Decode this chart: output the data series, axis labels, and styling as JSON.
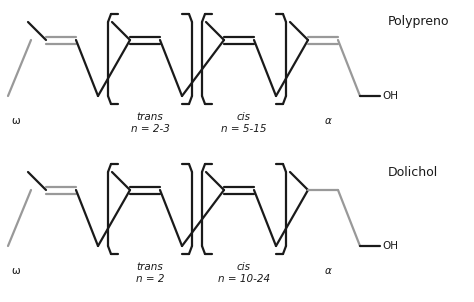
{
  "bg_color": "#ffffff",
  "line_color": "#1a1a1a",
  "gray_color": "#999999",
  "title1": "Polypreno",
  "title2": "Dolichol",
  "label_omega": "ω",
  "label_trans": "trans",
  "label_cis": "cis",
  "label_alpha": "α",
  "label_n1_trans": "n = 2-3",
  "label_n1_cis": "n = 5-15",
  "label_n2_trans": "n = 2",
  "label_n2_cis": "n = 10-24",
  "label_OH": "OH",
  "figsize": [
    4.74,
    3.02
  ],
  "dpi": 100
}
